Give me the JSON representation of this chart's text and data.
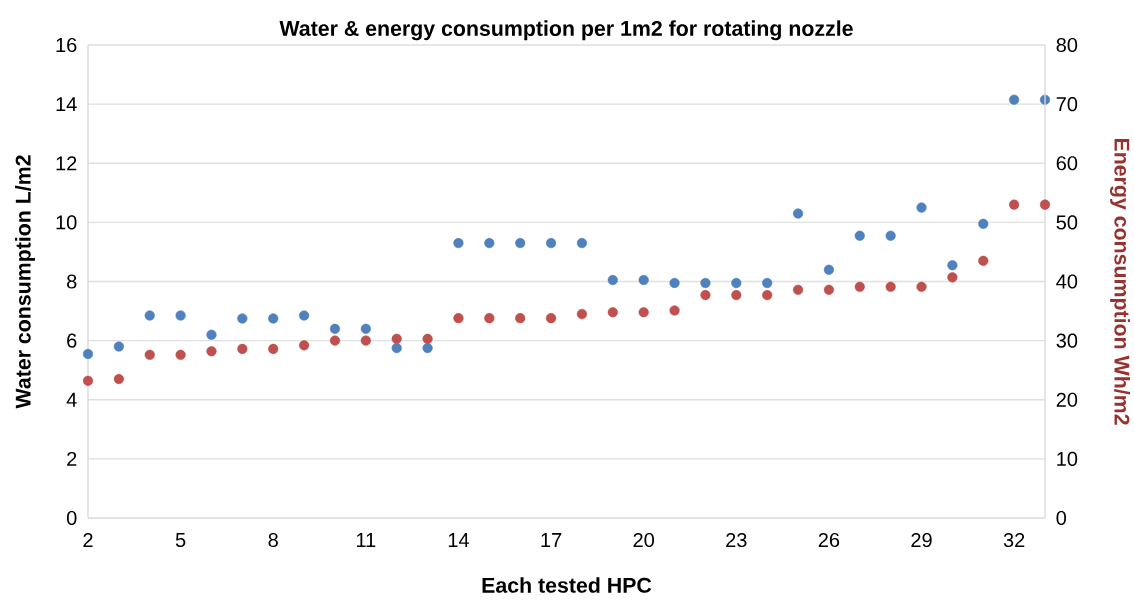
{
  "chart_data": {
    "type": "scatter",
    "title": "Water & energy consumption per 1m2 for rotating nozzle",
    "xlabel": "Each tested HPC",
    "ylabel": "Water consumption L/m2",
    "y2label": "Energy consumption Wh/m2",
    "x": [
      2,
      3,
      4,
      5,
      6,
      7,
      8,
      9,
      10,
      11,
      12,
      13,
      14,
      15,
      16,
      17,
      18,
      19,
      20,
      21,
      22,
      23,
      24,
      25,
      26,
      27,
      28,
      29,
      30,
      31,
      32,
      33
    ],
    "series": [
      {
        "color": "#4f81bd",
        "values": [
          5.55,
          5.8,
          6.85,
          6.85,
          6.2,
          6.75,
          6.75,
          6.85,
          6.4,
          6.4,
          5.75,
          5.75,
          9.3,
          9.3,
          9.3,
          9.3,
          9.3,
          8.05,
          8.05,
          7.95,
          7.95,
          7.95,
          7.95,
          10.3,
          8.4,
          9.55,
          9.55,
          10.5,
          8.55,
          9.95,
          14.15,
          14.15
        ]
      },
      {
        "color": "#c0504d",
        "axis": "y2",
        "values": [
          23.2,
          23.5,
          27.6,
          27.6,
          28.2,
          28.6,
          28.6,
          29.2,
          30,
          30,
          30.3,
          30.3,
          33.8,
          33.8,
          33.8,
          33.8,
          34.5,
          34.8,
          34.8,
          35.1,
          37.7,
          37.7,
          37.7,
          38.6,
          38.6,
          39.1,
          39.1,
          39.1,
          40.7,
          43.5,
          53,
          53
        ]
      }
    ],
    "xlim": [
      2,
      33
    ],
    "xticks": [
      2,
      5,
      8,
      11,
      14,
      17,
      20,
      23,
      26,
      29,
      32
    ],
    "ylim": [
      0,
      16
    ],
    "yticks": [
      0,
      2,
      4,
      6,
      8,
      10,
      12,
      14,
      16
    ],
    "y2lim": [
      0,
      80
    ],
    "y2ticks": [
      0,
      10,
      20,
      30,
      40,
      50,
      60,
      70,
      80
    ],
    "grid": "y",
    "marker": "circle"
  }
}
